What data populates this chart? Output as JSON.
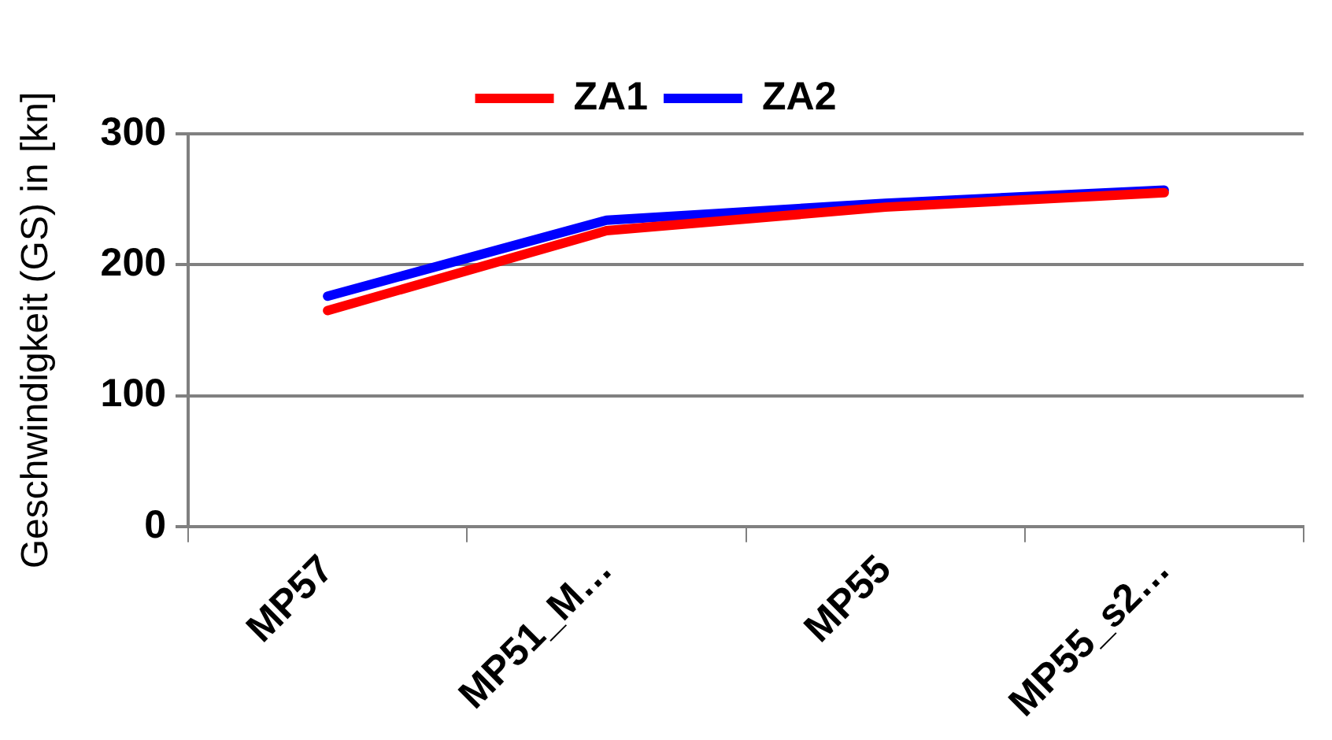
{
  "chart_data": {
    "type": "line",
    "ylabel": "Geschwindigkeit (GS) in [kn]",
    "categories": [
      "MP57",
      "MP51_M…",
      "MP55",
      "MP55_s2…"
    ],
    "series": [
      {
        "name": "ZA1",
        "color": "#ff0000",
        "values": [
          165,
          226,
          244,
          255
        ]
      },
      {
        "name": "ZA2",
        "color": "#0000ff",
        "values": [
          176,
          234,
          247,
          257
        ]
      }
    ],
    "ylim": [
      0,
      300
    ],
    "yticks": [
      0,
      100,
      200,
      300
    ],
    "grid": "y",
    "legend": "top",
    "marker": "none",
    "line_style": "solid"
  }
}
